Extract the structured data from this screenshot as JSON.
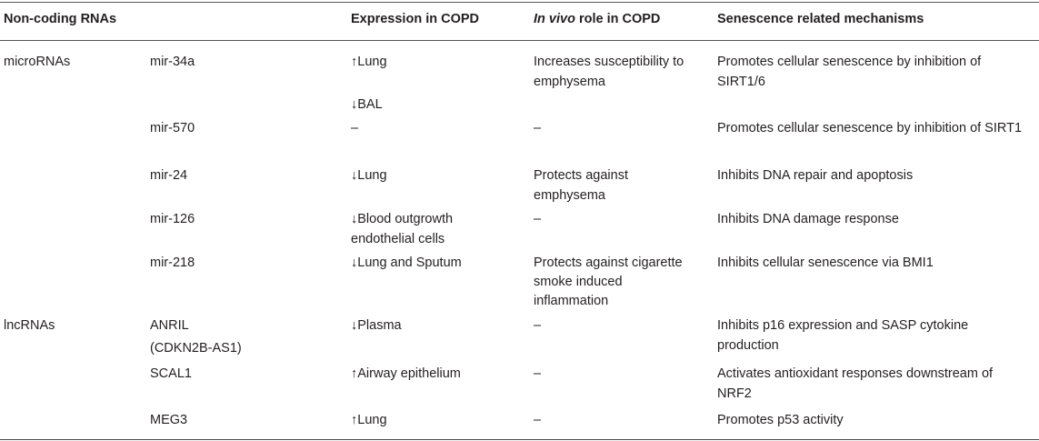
{
  "headers": {
    "col1": "Non-coding RNAs",
    "col2": "",
    "col3": "Expression in COPD",
    "col4_italic": "In vivo",
    "col4_rest": " role in COPD",
    "col5": "Senescence related mechanisms"
  },
  "rows": [
    {
      "category": "microRNAs",
      "name": "mir-34a",
      "expression": [
        "↑Lung",
        "",
        "↓BAL"
      ],
      "role": [
        "Increases susceptibility to",
        "emphysema"
      ],
      "mechanism": [
        "Promotes cellular senescence by inhibition of",
        "SIRT1/6"
      ]
    },
    {
      "category": "",
      "name": "mir-570",
      "expression": [
        "–"
      ],
      "role": [
        "–"
      ],
      "mechanism": [
        "Promotes cellular senescence by inhibition of SIRT1"
      ]
    },
    {
      "category": "",
      "name": "mir-24",
      "expression": [
        "↓Lung"
      ],
      "role": [
        "Protects against",
        "emphysema"
      ],
      "mechanism": [
        "Inhibits DNA repair and apoptosis"
      ]
    },
    {
      "category": "",
      "name": "mir-126",
      "expression": [
        "↓Blood outgrowth",
        "endothelial cells"
      ],
      "role": [
        "–"
      ],
      "mechanism": [
        "Inhibits DNA damage response"
      ]
    },
    {
      "category": "",
      "name": "mir-218",
      "expression": [
        "↓Lung and Sputum"
      ],
      "role": [
        "Protects against cigarette",
        "smoke induced",
        "inflammation"
      ],
      "mechanism": [
        "Inhibits cellular senescence via BMI1"
      ]
    },
    {
      "category": "lncRNAs",
      "name": "ANRIL",
      "name2": "(CDKN2B-AS1)",
      "expression": [
        "↓Plasma"
      ],
      "role": [
        "–"
      ],
      "mechanism": [
        "Inhibits p16 expression and SASP cytokine",
        "production"
      ]
    },
    {
      "category": "",
      "name": "SCAL1",
      "expression": [
        "↑Airway epithelium"
      ],
      "role": [
        "–"
      ],
      "mechanism": [
        "Activates antioxidant responses downstream of",
        "NRF2"
      ]
    },
    {
      "category": "",
      "name": "MEG3",
      "expression": [
        "↑Lung"
      ],
      "role": [
        "–"
      ],
      "mechanism": [
        "Promotes p53 activity"
      ]
    }
  ]
}
